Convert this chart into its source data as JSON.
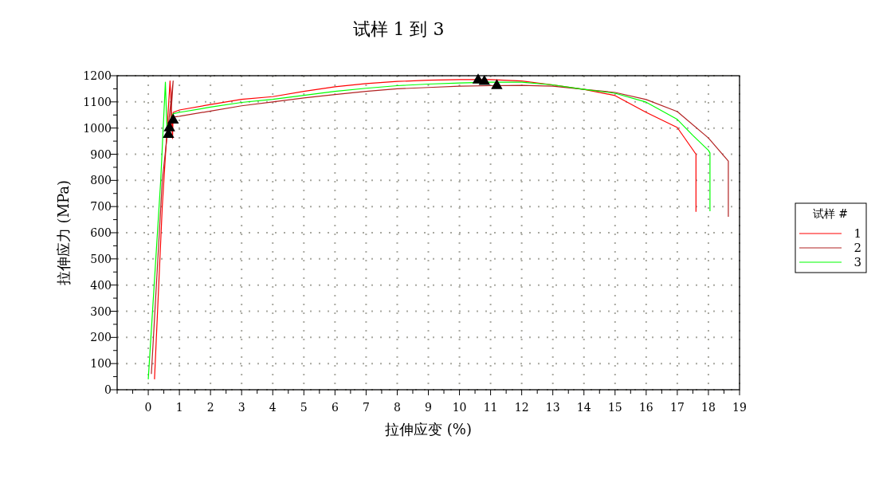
{
  "chart_data": {
    "type": "line",
    "title": "试样 1 到 3",
    "xlabel": "拉伸应变 (%)",
    "ylabel": "拉伸应力 (MPa)",
    "legend_title": "试样 #",
    "legend": "right",
    "grid": true,
    "marker": "none",
    "line_style": "solid",
    "xlim": [
      -1,
      19
    ],
    "ylim": [
      0,
      1200
    ],
    "xticks": [
      {
        "value": -1,
        "label": null
      },
      {
        "value": -0.5,
        "label": null
      },
      0,
      {
        "value": 0.5,
        "label": null
      },
      1,
      {
        "value": 1.5,
        "label": null
      },
      2,
      {
        "value": 2.5,
        "label": null
      },
      3,
      {
        "value": 3.5,
        "label": null
      },
      4,
      {
        "value": 4.5,
        "label": null
      },
      5,
      {
        "value": 5.5,
        "label": null
      },
      6,
      {
        "value": 6.5,
        "label": null
      },
      7,
      {
        "value": 7.5,
        "label": null
      },
      8,
      {
        "value": 8.5,
        "label": null
      },
      9,
      {
        "value": 9.5,
        "label": null
      },
      10,
      {
        "value": 10.5,
        "label": null
      },
      11,
      {
        "value": 11.5,
        "label": null
      },
      12,
      {
        "value": 12.5,
        "label": null
      },
      13,
      {
        "value": 13.5,
        "label": null
      },
      14,
      {
        "value": 14.5,
        "label": null
      },
      15,
      {
        "value": 15.5,
        "label": null
      },
      16,
      {
        "value": 16.5,
        "label": null
      },
      17,
      {
        "value": 17.5,
        "label": null
      },
      18,
      {
        "value": 18.5,
        "label": null
      },
      19
    ],
    "yticks": [
      0,
      {
        "value": 50,
        "label": null
      },
      100,
      {
        "value": 150,
        "label": null
      },
      200,
      {
        "value": 250,
        "label": null
      },
      300,
      {
        "value": 350,
        "label": null
      },
      400,
      {
        "value": 450,
        "label": null
      },
      500,
      {
        "value": 550,
        "label": null
      },
      600,
      {
        "value": 650,
        "label": null
      },
      700,
      {
        "value": 750,
        "label": null
      },
      800,
      {
        "value": 850,
        "label": null
      },
      900,
      {
        "value": 950,
        "label": null
      },
      1000,
      {
        "value": 1050,
        "label": null
      },
      1100,
      {
        "value": 1150,
        "label": null
      },
      1200
    ],
    "series": [
      {
        "name": "1",
        "color": "#ff0000",
        "x": [
          0.2,
          0.45,
          0.7,
          0.78,
          0.8,
          1,
          2,
          3,
          4,
          5,
          6,
          7,
          8,
          9,
          10,
          11,
          12,
          13,
          14,
          15,
          16,
          17,
          17.6,
          17.6
        ],
        "values": [
          40,
          700,
          1180,
          960,
          1060,
          1069,
          1090,
          1110,
          1120,
          1140,
          1158,
          1170,
          1178,
          1183,
          1185,
          1185,
          1180,
          1165,
          1148,
          1124,
          1060,
          1002,
          900,
          680
        ]
      },
      {
        "name": "2",
        "color": "#b22222",
        "x": [
          0.1,
          0.45,
          0.8,
          0.7,
          0.8,
          1,
          2,
          3,
          4,
          5,
          6,
          7,
          8,
          9,
          10,
          11,
          12,
          13,
          14,
          15,
          16,
          17,
          18,
          18.64,
          18.64
        ],
        "values": [
          60,
          800,
          1180,
          1000,
          1042,
          1045,
          1065,
          1085,
          1100,
          1115,
          1128,
          1140,
          1150,
          1155,
          1160,
          1162,
          1163,
          1160,
          1148,
          1136,
          1109,
          1063,
          962,
          874,
          661
        ]
      },
      {
        "name": "3",
        "color": "#00ff00",
        "x": [
          0,
          0.4,
          0.55,
          0.6,
          0.8,
          1,
          2,
          3,
          4,
          5,
          6,
          7,
          8,
          9,
          10,
          11,
          12,
          13,
          14,
          15,
          16,
          17,
          17.5,
          18,
          18.05,
          18.05
        ],
        "values": [
          40,
          800,
          1175,
          1000,
          1055,
          1060,
          1080,
          1098,
          1110,
          1125,
          1140,
          1152,
          1162,
          1168,
          1172,
          1175,
          1175,
          1165,
          1148,
          1133,
          1099,
          1033,
          972,
          915,
          905,
          682
        ]
      },
      {
        "type": "scatter",
        "marker": "triangle",
        "color": "#000000",
        "x": [
          0.65,
          0.68,
          0.8,
          10.6,
          10.8,
          11.2
        ],
        "values": [
          975,
          1000,
          1030,
          1183,
          1178,
          1162
        ]
      }
    ]
  }
}
